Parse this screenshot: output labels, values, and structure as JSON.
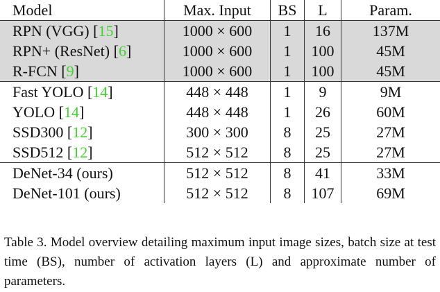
{
  "table": {
    "header": [
      "Model",
      "Max. Input",
      "BS",
      "L",
      "Param."
    ],
    "groups": [
      {
        "shaded": true,
        "rows": [
          [
            "RPN (VGG) [15]",
            "1000 × 600",
            1,
            16,
            "137M"
          ],
          [
            "RPN+ (ResNet) [6]",
            "1000 × 600",
            1,
            100,
            "45M"
          ],
          [
            "R-FCN [9]",
            "1000 × 600",
            1,
            100,
            "45M"
          ]
        ]
      },
      {
        "shaded": false,
        "rows": [
          [
            "Fast YOLO [14]",
            "448 × 448",
            1,
            9,
            "9M"
          ],
          [
            "YOLO [14]",
            "448 × 448",
            1,
            26,
            "60M"
          ],
          [
            "SSD300 [12]",
            "300 × 300",
            8,
            25,
            "27M"
          ],
          [
            "SSD512 [12]",
            "512 × 512",
            8,
            25,
            "27M"
          ]
        ]
      },
      {
        "shaded": false,
        "rows": [
          [
            "DeNet-34 (ours)",
            "512 × 512",
            8,
            41,
            "33M"
          ],
          [
            "DeNet-101 (ours)",
            "512 × 512",
            8,
            107,
            "69M"
          ]
        ]
      }
    ]
  },
  "caption": "Table 3. Model overview detailing maximum input image sizes, batch size at test time (BS), number of activation layers (L) and approximate number of parameters."
}
